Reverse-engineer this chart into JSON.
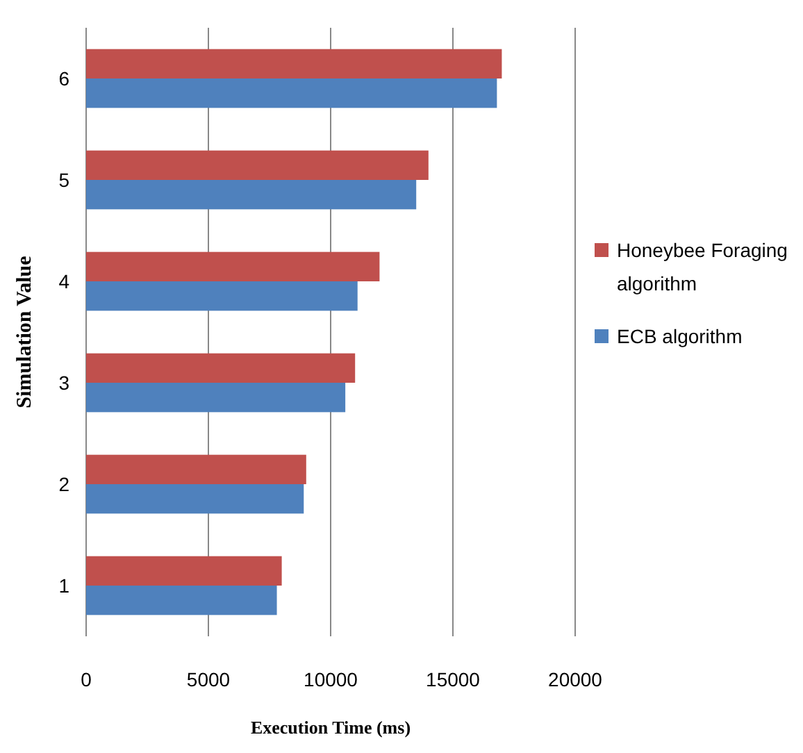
{
  "chart_data": {
    "type": "bar",
    "orientation": "horizontal",
    "xlabel": "Execution Time (ms)",
    "ylabel": "Simulation Value",
    "categories": [
      "6",
      "5",
      "4",
      "3",
      "2",
      "1"
    ],
    "series": [
      {
        "name": "Honeybee Foraging algorithm",
        "color": "#c0504d",
        "values": [
          17000,
          14000,
          12000,
          11000,
          9000,
          8000
        ]
      },
      {
        "name": "ECB algorithm",
        "color": "#4f81bd",
        "values": [
          16800,
          13500,
          11100,
          10600,
          8900,
          7800
        ]
      }
    ],
    "xlim": [
      0,
      20000
    ],
    "xticks": [
      0,
      5000,
      10000,
      15000,
      20000
    ],
    "grid": "x",
    "legend": "right"
  }
}
